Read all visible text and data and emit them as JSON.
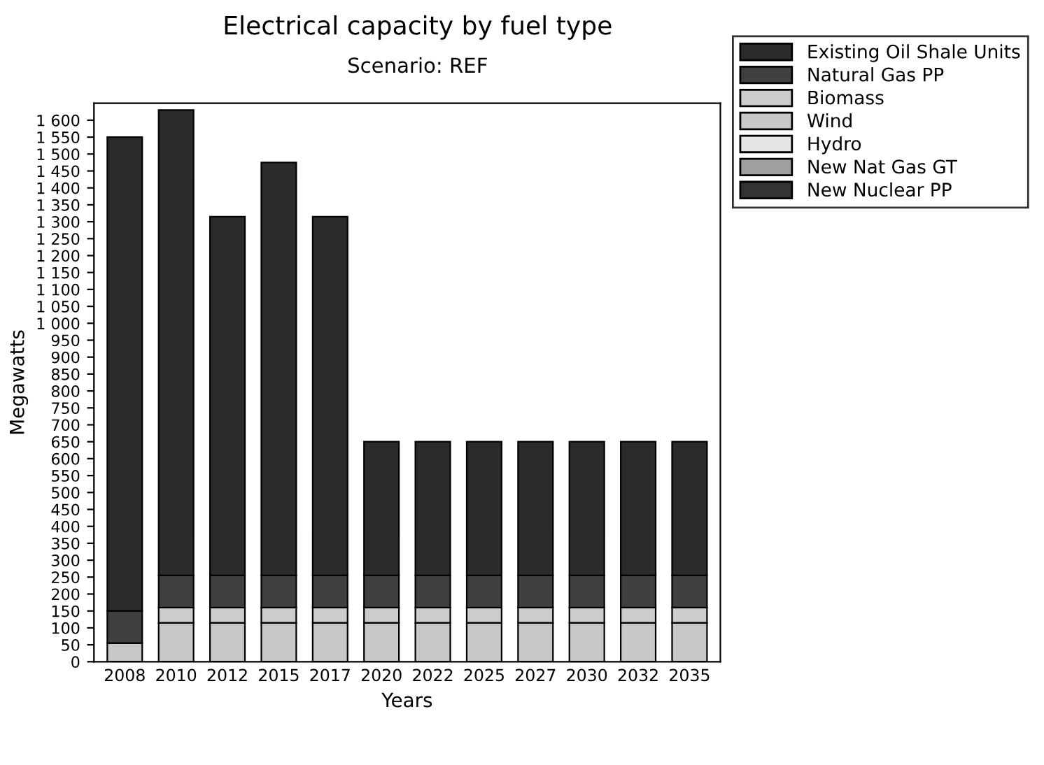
{
  "chart_data": {
    "type": "bar",
    "title": "Electrical capacity by fuel type",
    "subtitle": "Scenario: REF",
    "xlabel": "Years",
    "ylabel": "Megawatts",
    "categories": [
      "2008",
      "2010",
      "2012",
      "2015",
      "2017",
      "2020",
      "2022",
      "2025",
      "2027",
      "2030",
      "2032",
      "2035"
    ],
    "stacked": true,
    "grid": false,
    "legend": "top right",
    "ylim": [
      0,
      1650
    ],
    "yticks": [
      0,
      50,
      100,
      150,
      200,
      250,
      300,
      350,
      400,
      450,
      500,
      550,
      600,
      650,
      700,
      750,
      800,
      850,
      900,
      950,
      {
        "value": 1000,
        "label": "1 000"
      },
      {
        "value": 1050,
        "label": "1 050"
      },
      {
        "value": 1100,
        "label": "1 100"
      },
      {
        "value": 1150,
        "label": "1 150"
      },
      {
        "value": 1200,
        "label": "1 200"
      },
      {
        "value": 1250,
        "label": "1 250"
      },
      {
        "value": 1300,
        "label": "1 300"
      },
      {
        "value": 1350,
        "label": "1 350"
      },
      {
        "value": 1400,
        "label": "1 400"
      },
      {
        "value": 1450,
        "label": "1 450"
      },
      {
        "value": 1500,
        "label": "1 500"
      },
      {
        "value": 1550,
        "label": "1 550"
      },
      {
        "value": 1600,
        "label": "1 600"
      }
    ],
    "series": [
      {
        "name": "New Nuclear PP",
        "color": "#333333",
        "values": [
          0,
          0,
          0,
          0,
          0,
          0,
          0,
          0,
          0,
          0,
          0,
          0
        ]
      },
      {
        "name": "New Nat Gas GT",
        "color": "#a0a0a0",
        "values": [
          0,
          0,
          0,
          0,
          0,
          0,
          0,
          0,
          0,
          0,
          0,
          0
        ]
      },
      {
        "name": "Hydro",
        "color": "#e6e6e6",
        "values": [
          0,
          0,
          0,
          0,
          0,
          0,
          0,
          0,
          0,
          0,
          0,
          0
        ]
      },
      {
        "name": "Wind",
        "color": "#c8c8c8",
        "values": [
          55,
          115,
          115,
          115,
          115,
          115,
          115,
          115,
          115,
          115,
          115,
          115
        ]
      },
      {
        "name": "Biomass",
        "color": "#cccccc",
        "values": [
          0,
          45,
          45,
          45,
          45,
          45,
          45,
          45,
          45,
          45,
          45,
          45
        ]
      },
      {
        "name": "Natural Gas PP",
        "color": "#404040",
        "values": [
          95,
          95,
          95,
          95,
          95,
          95,
          95,
          95,
          95,
          95,
          95,
          95
        ]
      },
      {
        "name": "Existing Oil Shale Units",
        "color": "#2b2b2b",
        "values": [
          1400,
          1375,
          1060,
          1220,
          1060,
          395,
          395,
          395,
          395,
          395,
          395,
          395
        ]
      }
    ]
  }
}
